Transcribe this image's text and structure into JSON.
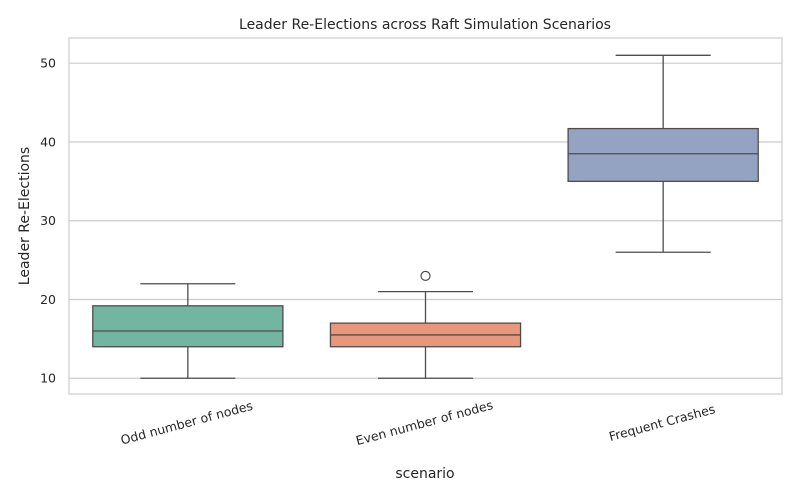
{
  "chart_data": {
    "type": "box",
    "title": "Leader Re-Elections across Raft Simulation Scenarios",
    "xlabel": "scenario",
    "ylabel": "Leader Re-Elections",
    "ylim": [
      8,
      53.2
    ],
    "yticks": [
      10,
      20,
      30,
      40,
      50
    ],
    "grid": "horizontal",
    "categories": [
      "Odd number of nodes",
      "Even number of nodes",
      "Frequent Crashes"
    ],
    "boxes": [
      {
        "category": "Odd number of nodes",
        "whisker_low": 10,
        "q1": 14,
        "median": 16,
        "q3": 19.2,
        "whisker_high": 22,
        "outliers": [],
        "color": "#72b6a1"
      },
      {
        "category": "Even number of nodes",
        "whisker_low": 10,
        "q1": 14,
        "median": 15.5,
        "q3": 17,
        "whisker_high": 21,
        "outliers": [
          23
        ],
        "color": "#e9967a"
      },
      {
        "category": "Frequent Crashes",
        "whisker_low": 26,
        "q1": 35,
        "median": 38.5,
        "q3": 41.7,
        "whisker_high": 51,
        "outliers": [],
        "color": "#95a3c3"
      }
    ]
  }
}
